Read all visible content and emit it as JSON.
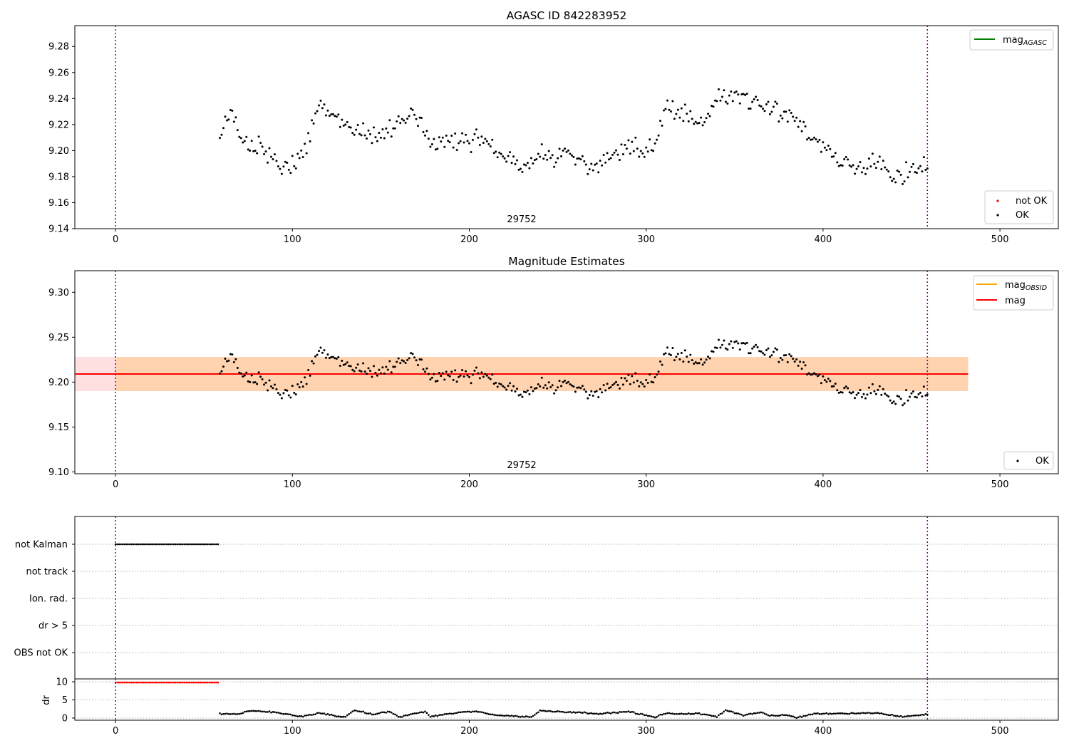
{
  "chart_data": [
    {
      "type": "scatter",
      "title": "AGASC ID 842283952",
      "annotation": "29752",
      "xlim": [
        -23,
        533
      ],
      "ylim": [
        9.14,
        9.296
      ],
      "xticks": [
        0,
        100,
        200,
        300,
        400,
        500
      ],
      "yticks": [
        9.14,
        9.16,
        9.18,
        9.2,
        9.22,
        9.24,
        9.26,
        9.28
      ],
      "vlines": [
        0,
        459
      ],
      "legend_top": {
        "placement": "top-right",
        "entries": [
          {
            "label": "mag",
            "sub": "AGASC",
            "color": "#008000",
            "kind": "line"
          }
        ]
      },
      "legend_bottom": {
        "placement": "bottom-right",
        "entries": [
          {
            "label": "not OK",
            "color": "#ff0000",
            "kind": "point"
          },
          {
            "label": "OK",
            "color": "#000000",
            "kind": "point"
          }
        ]
      },
      "series": [
        {
          "name": "OK",
          "color": "#000000",
          "x_start": 59,
          "x_end": 459,
          "anchors": [
            [
              59,
              9.21
            ],
            [
              65,
              9.232
            ],
            [
              70,
              9.208
            ],
            [
              80,
              9.204
            ],
            [
              95,
              9.185
            ],
            [
              105,
              9.195
            ],
            [
              115,
              9.235
            ],
            [
              125,
              9.222
            ],
            [
              140,
              9.215
            ],
            [
              150,
              9.21
            ],
            [
              160,
              9.225
            ],
            [
              170,
              9.228
            ],
            [
              180,
              9.2
            ],
            [
              190,
              9.21
            ],
            [
              200,
              9.205
            ],
            [
              210,
              9.212
            ],
            [
              220,
              9.195
            ],
            [
              230,
              9.188
            ],
            [
              240,
              9.195
            ],
            [
              250,
              9.196
            ],
            [
              260,
              9.195
            ],
            [
              270,
              9.186
            ],
            [
              280,
              9.195
            ],
            [
              290,
              9.2
            ],
            [
              300,
              9.2
            ],
            [
              305,
              9.205
            ],
            [
              310,
              9.232
            ],
            [
              320,
              9.232
            ],
            [
              330,
              9.22
            ],
            [
              340,
              9.238
            ],
            [
              350,
              9.245
            ],
            [
              360,
              9.238
            ],
            [
              370,
              9.235
            ],
            [
              380,
              9.23
            ],
            [
              390,
              9.215
            ],
            [
              400,
              9.2
            ],
            [
              410,
              9.19
            ],
            [
              420,
              9.185
            ],
            [
              430,
              9.195
            ],
            [
              440,
              9.18
            ],
            [
              450,
              9.182
            ],
            [
              459,
              9.19
            ]
          ]
        }
      ]
    },
    {
      "type": "scatter",
      "title": "Magnitude Estimates",
      "annotation": "29752",
      "xlim": [
        -23,
        533
      ],
      "ylim": [
        9.098,
        9.324
      ],
      "xticks": [
        0,
        100,
        200,
        300,
        400,
        500
      ],
      "yticks": [
        9.1,
        9.15,
        9.2,
        9.25,
        9.3
      ],
      "vlines": [
        0,
        459
      ],
      "mag": 9.209,
      "mag_band": [
        9.19,
        9.228
      ],
      "mag_obsid_band": [
        9.19,
        9.228
      ],
      "band_x": [
        -23,
        482
      ],
      "legend_top": {
        "placement": "top-right",
        "entries": [
          {
            "label": "mag",
            "sub": "OBSID",
            "color": "#ffa500",
            "kind": "line"
          },
          {
            "label": "mag",
            "color": "#ff0000",
            "kind": "line"
          }
        ]
      },
      "legend_bottom": {
        "placement": "bottom-right",
        "entries": [
          {
            "label": "OK",
            "color": "#000000",
            "kind": "point"
          }
        ]
      },
      "series": [
        {
          "name": "OK",
          "color": "#000000",
          "same_as_panel": 0
        }
      ]
    },
    {
      "type": "scatter",
      "xlim": [
        -23,
        533
      ],
      "categories": [
        "not Kalman",
        "not track",
        "Ion. rad.",
        "dr > 5",
        "OBS not OK"
      ],
      "vlines": [
        0,
        459
      ],
      "flags": [
        {
          "category": "not Kalman",
          "x_start": 0,
          "x_end": 58
        }
      ]
    },
    {
      "type": "scatter",
      "ylabel": "dr",
      "xlim": [
        -23,
        533
      ],
      "ylim": [
        -0.6,
        10.8
      ],
      "xticks": [
        0,
        100,
        200,
        300,
        400,
        500
      ],
      "yticks": [
        0,
        5,
        10
      ],
      "vlines": [
        0,
        459
      ],
      "series": [
        {
          "name": "not OK",
          "color": "#ff0000",
          "x_start": 0,
          "x_end": 58,
          "value": 9.8
        },
        {
          "name": "OK",
          "color": "#000000",
          "x_start": 59,
          "x_end": 459,
          "anchors": [
            [
              59,
              1.2
            ],
            [
              70,
              1.0
            ],
            [
              75,
              2.0
            ],
            [
              90,
              1.6
            ],
            [
              105,
              0.4
            ],
            [
              115,
              1.4
            ],
            [
              125,
              0.6
            ],
            [
              130,
              0.2
            ],
            [
              135,
              2.2
            ],
            [
              145,
              1.0
            ],
            [
              155,
              1.8
            ],
            [
              160,
              0.3
            ],
            [
              175,
              1.8
            ],
            [
              178,
              0.4
            ],
            [
              195,
              1.6
            ],
            [
              205,
              1.8
            ],
            [
              215,
              0.8
            ],
            [
              235,
              0.3
            ],
            [
              240,
              2.0
            ],
            [
              260,
              1.6
            ],
            [
              275,
              1.2
            ],
            [
              290,
              1.8
            ],
            [
              305,
              0.2
            ],
            [
              310,
              1.2
            ],
            [
              330,
              1.2
            ],
            [
              340,
              0.4
            ],
            [
              345,
              2.2
            ],
            [
              355,
              0.8
            ],
            [
              365,
              1.6
            ],
            [
              370,
              0.6
            ],
            [
              380,
              0.8
            ],
            [
              385,
              0.1
            ],
            [
              395,
              1.2
            ],
            [
              430,
              1.4
            ],
            [
              445,
              0.4
            ],
            [
              459,
              1.0
            ]
          ]
        }
      ]
    }
  ]
}
